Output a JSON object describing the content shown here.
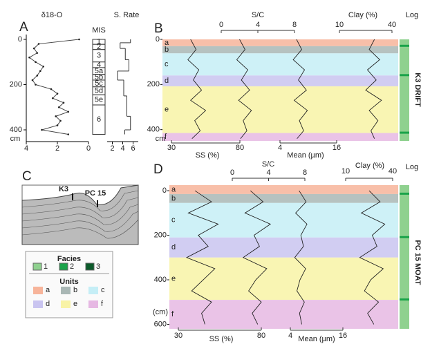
{
  "panels": {
    "A": {
      "label": "A",
      "title": "δ18-O",
      "xlim": [
        4,
        0
      ],
      "xticks": [
        4,
        2,
        0
      ],
      "ylim": [
        0,
        420
      ],
      "yticks": [
        0,
        200,
        400
      ],
      "y_unit": "cm",
      "depth": [
        0,
        20,
        40,
        60,
        80,
        100,
        120,
        140,
        160,
        180,
        200,
        220,
        240,
        260,
        280,
        300,
        320,
        340,
        360,
        380,
        400,
        420
      ],
      "values": [
        0.6,
        3.2,
        3.5,
        3.3,
        3.8,
        3.4,
        2.9,
        3.1,
        3.3,
        3.6,
        3.4,
        2.4,
        2.0,
        2.3,
        1.6,
        1.9,
        1.3,
        2.1,
        1.8,
        2.0,
        3.0,
        1.3
      ],
      "mis": {
        "title": "MIS",
        "labels": [
          "1",
          "2",
          "3",
          "4",
          "5a",
          "5b",
          "5c",
          "5d",
          "5e",
          "6"
        ],
        "edges": [
          0,
          22,
          45,
          100,
          125,
          155,
          180,
          210,
          245,
          290,
          420
        ]
      },
      "srate": {
        "title": "S. Rate",
        "xlim": [
          1,
          7
        ],
        "xticks": [
          2,
          4,
          6
        ],
        "edges": [
          0,
          15,
          40,
          90,
          140,
          180,
          250,
          340,
          400,
          420
        ],
        "values": [
          5.5,
          3.5,
          4.5,
          5.2,
          3.0,
          4.2,
          4.8,
          5.5,
          4.4
        ]
      }
    },
    "B": {
      "label": "B",
      "side_title": "K3 DRIFT",
      "log_title": "Log",
      "ylim": [
        0,
        450
      ],
      "yticks": [
        0,
        200,
        400
      ],
      "y_unit": "cm",
      "bands": {
        "edges": [
          0,
          30,
          62,
          160,
          208,
          415,
          450
        ],
        "labels": [
          "a",
          "b",
          "c",
          "d",
          "e",
          "f"
        ]
      },
      "depth": [
        0,
        45,
        90,
        135,
        180,
        225,
        270,
        315,
        360,
        405,
        440
      ],
      "series": [
        {
          "name": "SS (%)",
          "xlim": [
            30,
            80
          ],
          "xticks": [
            30,
            80
          ],
          "values": [
            44,
            48,
            42,
            50,
            46,
            52,
            44,
            55,
            47,
            51,
            45
          ]
        },
        {
          "name": "S/C",
          "xlim": [
            0,
            8
          ],
          "xticks": [
            0,
            4,
            8
          ],
          "values": [
            2.0,
            2.6,
            1.7,
            2.9,
            2.2,
            3.1,
            1.9,
            3.3,
            2.4,
            2.8,
            2.1
          ]
        },
        {
          "name": "Mean (µm)",
          "xlim": [
            4,
            16
          ],
          "xticks": [
            4,
            16
          ],
          "values": [
            7.5,
            8.6,
            6.8,
            9.2,
            7.9,
            9.6,
            7.0,
            9.8,
            8.1,
            9.0,
            7.6
          ]
        },
        {
          "name": "Clay (%)",
          "xlim": [
            10,
            40
          ],
          "xticks": [
            10,
            40
          ],
          "values": [
            30,
            27,
            33,
            26,
            31,
            25,
            34,
            27,
            32,
            28,
            30
          ]
        }
      ]
    },
    "C": {
      "label": "C",
      "sites": [
        "K3",
        "PC 15"
      ]
    },
    "D": {
      "label": "D",
      "side_title": "PC 15 MOAT",
      "log_title": "Log",
      "ylim": [
        -25,
        620
      ],
      "yticks": [
        0,
        200,
        400,
        600
      ],
      "y_unit": "(cm)",
      "bands": {
        "edges": [
          -25,
          15,
          55,
          210,
          300,
          490,
          620
        ],
        "labels": [
          "a",
          "b",
          "c",
          "d",
          "e",
          "f"
        ]
      },
      "depth": [
        0,
        50,
        100,
        150,
        200,
        250,
        300,
        350,
        400,
        450,
        500,
        550,
        600
      ],
      "series": [
        {
          "name": "SS (%)",
          "xlim": [
            30,
            80
          ],
          "xticks": [
            30,
            80
          ],
          "values": [
            40,
            50,
            36,
            54,
            42,
            48,
            35,
            52,
            45,
            38,
            50,
            44,
            46
          ]
        },
        {
          "name": "S/C",
          "xlim": [
            0,
            8
          ],
          "xticks": [
            0,
            4,
            8
          ],
          "values": [
            2.0,
            3.4,
            1.4,
            4.2,
            2.4,
            3.0,
            1.2,
            3.8,
            2.6,
            1.8,
            3.2,
            2.2,
            2.8
          ]
        },
        {
          "name": "Mean (µm)",
          "xlim": [
            4,
            16
          ],
          "xticks": [
            4,
            16
          ],
          "values": [
            6.0,
            7.6,
            5.2,
            7.8,
            6.4,
            7.0,
            5.0,
            7.5,
            6.2,
            5.5,
            7.2,
            6.1,
            6.6
          ]
        },
        {
          "name": "Clay (%)",
          "xlim": [
            10,
            40
          ],
          "xticks": [
            10,
            40
          ],
          "values": [
            25,
            32,
            20,
            35,
            27,
            30,
            19,
            34,
            26,
            22,
            31,
            24,
            28
          ]
        }
      ]
    }
  },
  "legend": {
    "facies_title": "Facies",
    "facies": [
      {
        "label": "1",
        "color": "#8fd18f"
      },
      {
        "label": "2",
        "color": "#1aa34a"
      },
      {
        "label": "3",
        "color": "#0b5a2a"
      }
    ],
    "units_title": "Units",
    "units": [
      {
        "label": "a",
        "color": "#f7b49a"
      },
      {
        "label": "b",
        "color": "#a9b7b5"
      },
      {
        "label": "c",
        "color": "#c5eef6"
      },
      {
        "label": "d",
        "color": "#c9c4f0"
      },
      {
        "label": "e",
        "color": "#f8f3a6"
      },
      {
        "label": "f",
        "color": "#e6b8e3"
      }
    ]
  }
}
